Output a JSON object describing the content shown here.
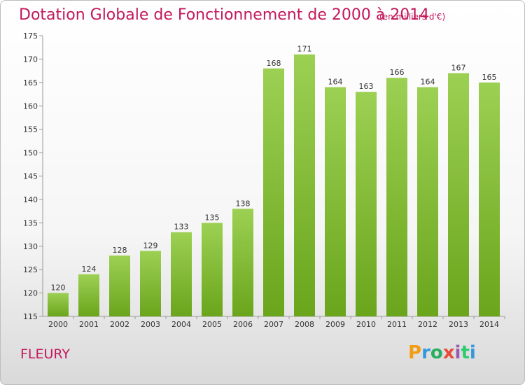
{
  "header": {
    "title": "Dotation Globale de Fonctionnement de 2000 à 2014",
    "subtitle": "(en milliers d'€)"
  },
  "footer": {
    "commune": "FLEURY",
    "brand_letters": [
      "P",
      "r",
      "o",
      "x",
      "i",
      "t",
      "i"
    ],
    "brand_colors": [
      "#f39c12",
      "#3498db",
      "#27ae60",
      "#e74c3c",
      "#9b59b6",
      "#2ecc71",
      "#3498db"
    ]
  },
  "colors": {
    "bar_top": "#9cd053",
    "bar_bottom": "#6aa51c",
    "accent": "#c2185b"
  },
  "chart_data": {
    "type": "bar",
    "title": "Dotation Globale de Fonctionnement de 2000 à 2014",
    "subtitle": "(en milliers d'€)",
    "categories": [
      "2000",
      "2001",
      "2002",
      "2003",
      "2004",
      "2005",
      "2006",
      "2007",
      "2008",
      "2009",
      "2010",
      "2011",
      "2012",
      "2013",
      "2014"
    ],
    "values": [
      120,
      124,
      128,
      129,
      133,
      135,
      138,
      168,
      171,
      164,
      163,
      166,
      164,
      167,
      165
    ],
    "ylim": [
      115,
      175
    ],
    "yticks": [
      115,
      120,
      125,
      130,
      135,
      140,
      145,
      150,
      155,
      160,
      165,
      170,
      175
    ],
    "grid": false,
    "legend": "none"
  }
}
